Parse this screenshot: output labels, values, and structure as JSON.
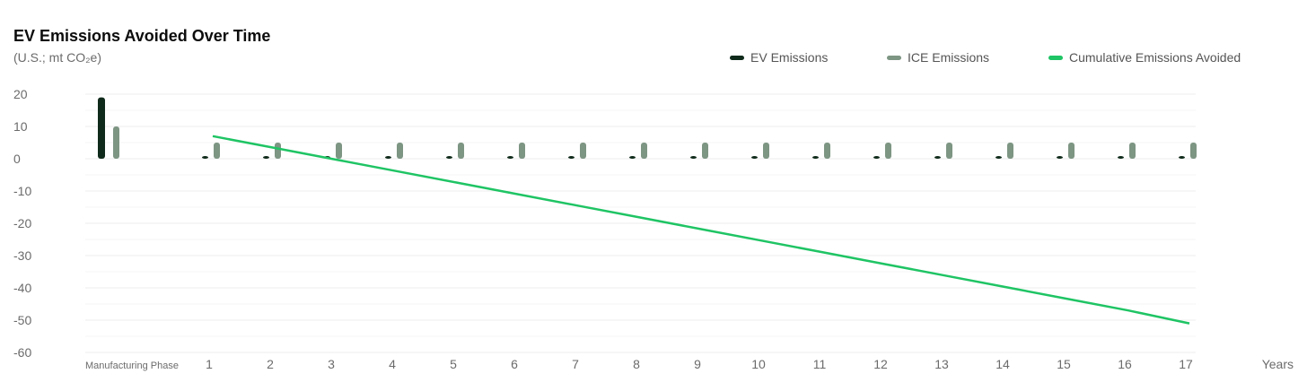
{
  "title": "EV Emissions Avoided Over Time",
  "subtitle": "(U.S.; mt CO₂e)",
  "legend": [
    {
      "label": "EV Emissions",
      "color": "#0f2a1a"
    },
    {
      "label": "ICE Emissions",
      "color": "#7d9583"
    },
    {
      "label": "Cumulative Emissions Avoided",
      "color": "#1fc464"
    }
  ],
  "chart_data": {
    "type": "bar",
    "categories": [
      "Manufacturing Phase",
      "1",
      "2",
      "3",
      "4",
      "5",
      "6",
      "7",
      "8",
      "9",
      "10",
      "11",
      "12",
      "13",
      "14",
      "15",
      "16",
      "17"
    ],
    "xlabel": "Years",
    "ylim": [
      -60,
      20
    ],
    "yticks": [
      20,
      10,
      0,
      -10,
      -20,
      -30,
      -40,
      -50,
      -60
    ],
    "grid": true,
    "legend_position": "top-right",
    "series": [
      {
        "name": "EV Emissions",
        "type": "bar",
        "color": "#0f2a1a",
        "values": [
          19,
          0.8,
          0.8,
          0.8,
          0.8,
          0.8,
          0.8,
          0.8,
          0.8,
          0.8,
          0.8,
          0.8,
          0.8,
          0.8,
          0.8,
          0.8,
          0.8,
          0.8
        ]
      },
      {
        "name": "ICE Emissions",
        "type": "bar",
        "color": "#7d9583",
        "values": [
          10,
          5,
          5,
          5,
          5,
          5,
          5,
          5,
          5,
          5,
          5,
          5,
          5,
          5,
          5,
          5,
          5,
          5
        ]
      },
      {
        "name": "Cumulative Emissions Avoided",
        "type": "line",
        "color": "#1fc464",
        "values": [
          null,
          7,
          3.4,
          -0.2,
          -3.8,
          -7.4,
          -11,
          -14.6,
          -18.2,
          -21.8,
          -25.4,
          -29,
          -32.6,
          -36.2,
          -39.8,
          -43.4,
          -47,
          -51
        ]
      }
    ]
  }
}
